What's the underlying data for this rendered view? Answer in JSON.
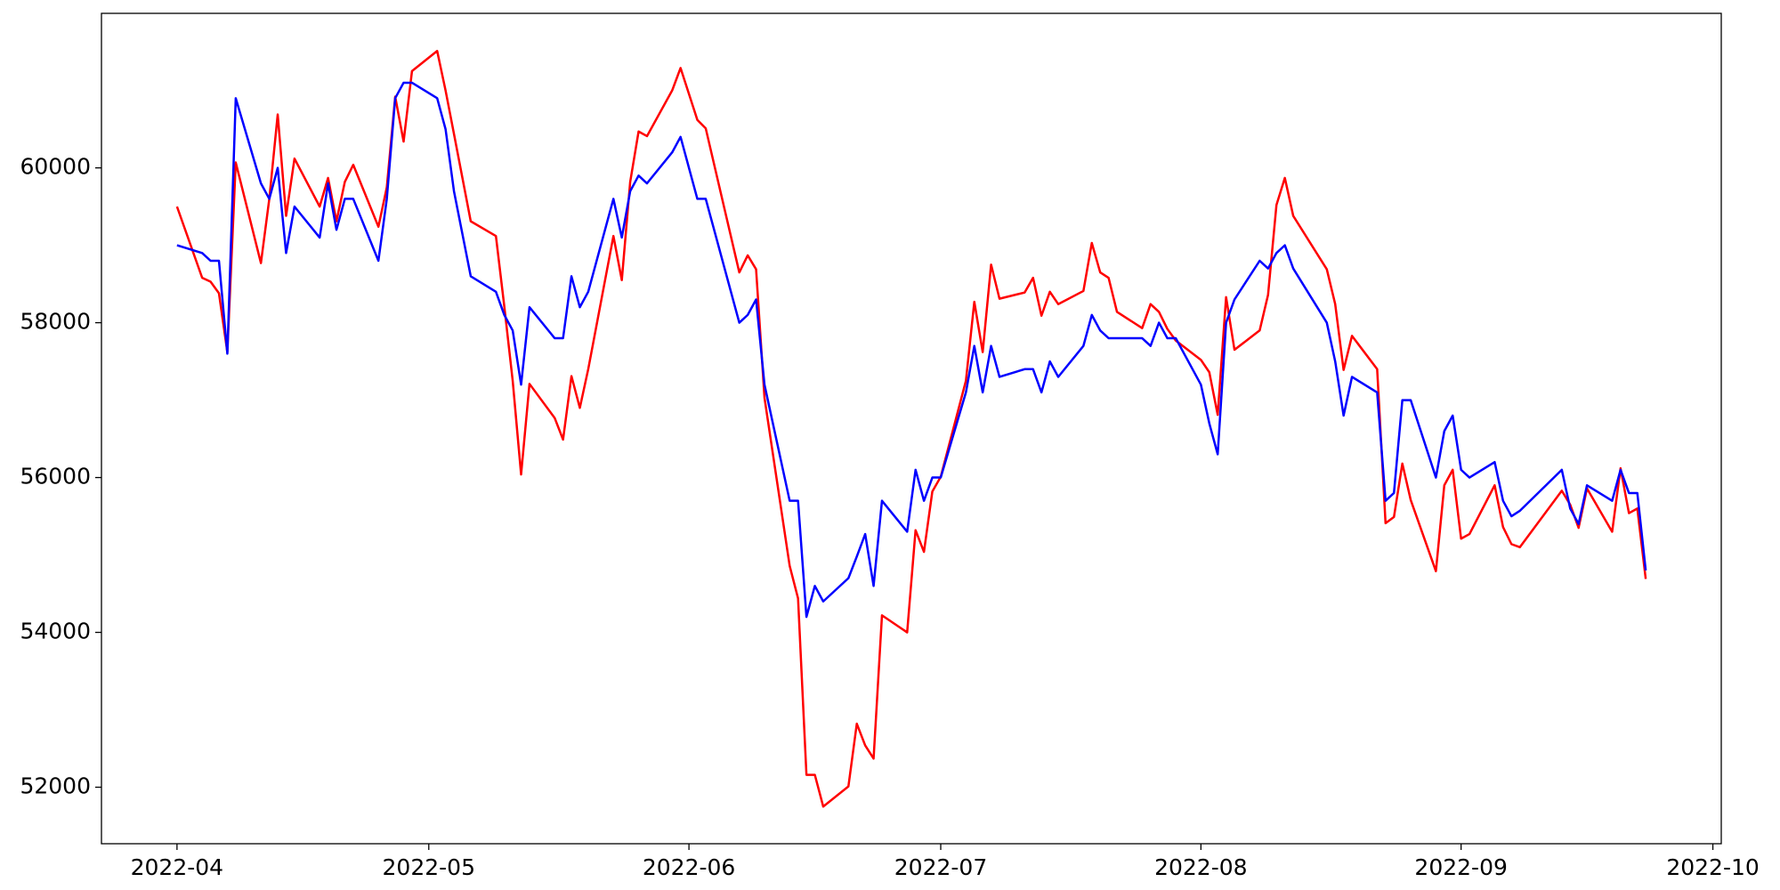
{
  "chart_data": {
    "type": "line",
    "x": [
      "2022-04-01",
      "2022-04-04",
      "2022-04-05",
      "2022-04-06",
      "2022-04-07",
      "2022-04-08",
      "2022-04-11",
      "2022-04-12",
      "2022-04-13",
      "2022-04-14",
      "2022-04-15",
      "2022-04-18",
      "2022-04-19",
      "2022-04-20",
      "2022-04-21",
      "2022-04-22",
      "2022-04-25",
      "2022-04-26",
      "2022-04-27",
      "2022-04-28",
      "2022-04-29",
      "2022-05-02",
      "2022-05-03",
      "2022-05-04",
      "2022-05-06",
      "2022-05-09",
      "2022-05-10",
      "2022-05-11",
      "2022-05-12",
      "2022-05-13",
      "2022-05-16",
      "2022-05-17",
      "2022-05-18",
      "2022-05-19",
      "2022-05-20",
      "2022-05-23",
      "2022-05-24",
      "2022-05-25",
      "2022-05-26",
      "2022-05-27",
      "2022-05-30",
      "2022-05-31",
      "2022-06-02",
      "2022-06-03",
      "2022-06-07",
      "2022-06-08",
      "2022-06-09",
      "2022-06-10",
      "2022-06-13",
      "2022-06-14",
      "2022-06-15",
      "2022-06-16",
      "2022-06-17",
      "2022-06-20",
      "2022-06-21",
      "2022-06-22",
      "2022-06-23",
      "2022-06-24",
      "2022-06-27",
      "2022-06-28",
      "2022-06-29",
      "2022-06-30",
      "2022-07-01",
      "2022-07-04",
      "2022-07-05",
      "2022-07-06",
      "2022-07-07",
      "2022-07-08",
      "2022-07-11",
      "2022-07-12",
      "2022-07-13",
      "2022-07-14",
      "2022-07-15",
      "2022-07-18",
      "2022-07-19",
      "2022-07-20",
      "2022-07-21",
      "2022-07-22",
      "2022-07-25",
      "2022-07-26",
      "2022-07-27",
      "2022-07-28",
      "2022-07-29",
      "2022-08-01",
      "2022-08-02",
      "2022-08-03",
      "2022-08-04",
      "2022-08-05",
      "2022-08-08",
      "2022-08-09",
      "2022-08-10",
      "2022-08-11",
      "2022-08-12",
      "2022-08-16",
      "2022-08-17",
      "2022-08-18",
      "2022-08-19",
      "2022-08-22",
      "2022-08-23",
      "2022-08-24",
      "2022-08-25",
      "2022-08-26",
      "2022-08-29",
      "2022-08-30",
      "2022-08-31",
      "2022-09-01",
      "2022-09-02",
      "2022-09-05",
      "2022-09-06",
      "2022-09-07",
      "2022-09-08",
      "2022-09-13",
      "2022-09-14",
      "2022-09-15",
      "2022-09-16",
      "2022-09-19",
      "2022-09-20",
      "2022-09-21",
      "2022-09-22",
      "2022-09-23"
    ],
    "series": [
      {
        "color": "#ff0000",
        "values": [
          59500,
          58580,
          58530,
          58380,
          57620,
          60070,
          58770,
          59600,
          60690,
          59380,
          60120,
          59500,
          59870,
          59310,
          59820,
          60040,
          59240,
          59750,
          60920,
          60340,
          61250,
          61510,
          61000,
          60440,
          59310,
          59120,
          58210,
          57250,
          56040,
          57210,
          56770,
          56490,
          57310,
          56900,
          57400,
          59120,
          58550,
          59820,
          60470,
          60410,
          61000,
          61290,
          60620,
          60510,
          58650,
          58870,
          58690,
          57030,
          54860,
          54440,
          52160,
          52160,
          51750,
          52010,
          52820,
          52540,
          52370,
          54220,
          54000,
          55320,
          55040,
          55820,
          56010,
          57250,
          58270,
          57620,
          58750,
          58310,
          58390,
          58580,
          58090,
          58400,
          58240,
          58410,
          59030,
          58650,
          58580,
          58140,
          57930,
          58240,
          58140,
          57920,
          57770,
          57520,
          57360,
          56810,
          58330,
          57650,
          57900,
          58360,
          59520,
          59870,
          59380,
          58690,
          58240,
          57390,
          57830,
          57400,
          55410,
          55490,
          56180,
          55710,
          54790,
          55900,
          56100,
          55210,
          55270,
          55900,
          55360,
          55140,
          55100,
          55830,
          55650,
          55350,
          55860,
          55300,
          56120,
          55540,
          55600,
          54690
        ]
      },
      {
        "color": "#0000ff",
        "values": [
          59000,
          58900,
          58800,
          58800,
          57600,
          60900,
          59800,
          59600,
          60000,
          58900,
          59500,
          59100,
          59800,
          59200,
          59600,
          59600,
          58800,
          59600,
          60900,
          61100,
          61100,
          60900,
          60500,
          59700,
          58600,
          58400,
          58100,
          57900,
          57200,
          58200,
          57800,
          57800,
          58600,
          58200,
          58400,
          59600,
          59100,
          59700,
          59900,
          59800,
          60200,
          60400,
          59600,
          59600,
          58000,
          58100,
          58300,
          57200,
          55700,
          55700,
          54200,
          54600,
          54400,
          54700,
          54980,
          55270,
          54600,
          55700,
          55300,
          56100,
          55700,
          56000,
          56000,
          57100,
          57700,
          57100,
          57700,
          57300,
          57400,
          57400,
          57100,
          57500,
          57300,
          57700,
          58100,
          57900,
          57800,
          57800,
          57800,
          57700,
          58000,
          57800,
          57800,
          57200,
          56700,
          56300,
          58000,
          58300,
          58800,
          58700,
          58900,
          59000,
          58700,
          58000,
          57500,
          56800,
          57300,
          57100,
          55700,
          55800,
          57000,
          57000,
          56000,
          56600,
          56800,
          56100,
          56000,
          56200,
          55700,
          55500,
          55570,
          56100,
          55600,
          55400,
          55900,
          55700,
          56100,
          55800,
          55800,
          54800
        ]
      }
    ],
    "xlim": [
      "2022-03-23",
      "2022-10-02"
    ],
    "xticks": [
      {
        "value": "2022-04-01",
        "label": "2022-04"
      },
      {
        "value": "2022-05-01",
        "label": "2022-05"
      },
      {
        "value": "2022-06-01",
        "label": "2022-06"
      },
      {
        "value": "2022-07-01",
        "label": "2022-07"
      },
      {
        "value": "2022-08-01",
        "label": "2022-08"
      },
      {
        "value": "2022-09-01",
        "label": "2022-09"
      },
      {
        "value": "2022-10-01",
        "label": "2022-10"
      }
    ],
    "ylim": [
      51270,
      61996
    ],
    "yticks": [
      52000,
      54000,
      56000,
      58000,
      60000
    ],
    "grid": false
  }
}
